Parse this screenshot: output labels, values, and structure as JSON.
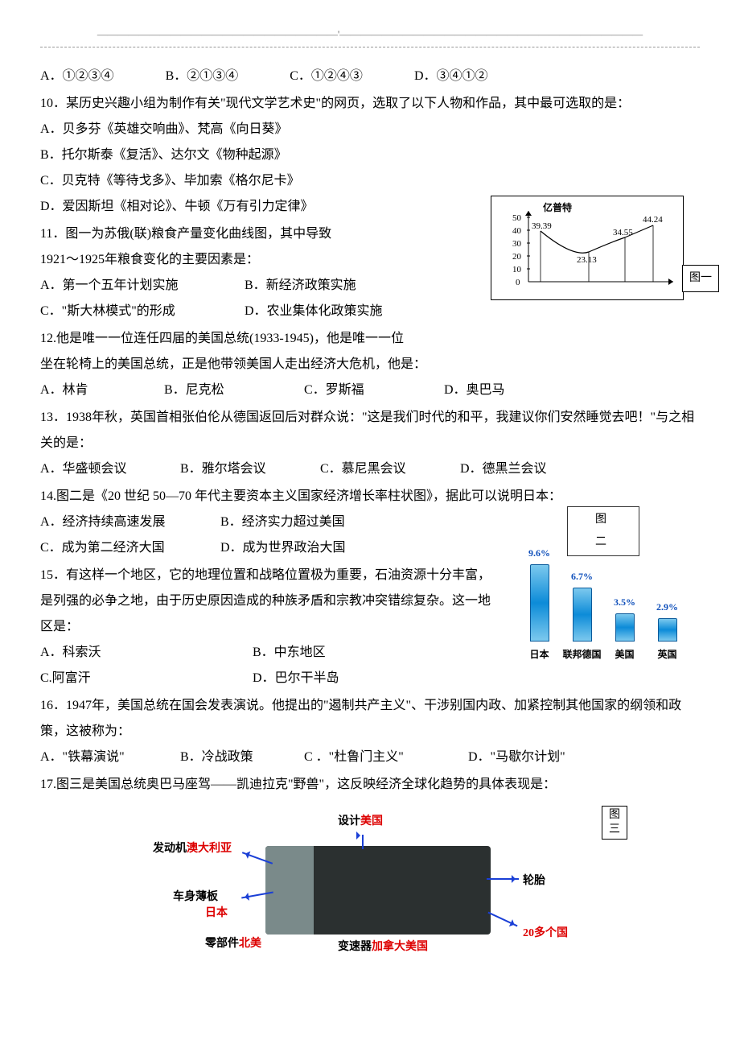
{
  "header": "———————————————————————'—————————————————————————————",
  "q9_options": [
    "A．①②③④",
    "B．②①③④",
    "C．①②④③",
    "D．③④①②"
  ],
  "q10": {
    "stem": "10．某历史兴趣小组为制作有关\"现代文学艺术史\"的网页，选取了以下人物和作品，其中最可选取的是：",
    "opts": [
      "A．贝多芬《英雄交响曲》、梵高《向日葵》",
      "B．托尔斯泰《复活》、达尔文《物种起源》",
      "C．贝克特《等待戈多》、毕加索《格尔尼卡》",
      "D．爱因斯坦《相对论》、牛顿《万有引力定律》"
    ]
  },
  "q11": {
    "stem1": "11．图一为苏俄(联)粮食产量变化曲线图，其中导致",
    "stem2": "1921～1925年粮食变化的主要因素是：",
    "opts": [
      "A．第一个五年计划实施",
      "B．新经济政策实施",
      "C．\"斯大林模式\"的形成",
      "D．农业集体化政策实施"
    ]
  },
  "chart1": {
    "ylabel": "亿普特",
    "yticks": [
      0,
      10,
      20,
      30,
      40,
      50
    ],
    "points": [
      {
        "val": 39.39
      },
      {
        "val": 23.13
      },
      {
        "val": 34.55
      },
      {
        "val": 44.24
      }
    ],
    "label": "图一",
    "bg_color": "#ffffff",
    "line_color": "#000000"
  },
  "q12": {
    "stem1": "12.他是唯一一位连任四届的美国总统(1933-1945)，他是唯一一位",
    "stem2": "坐在轮椅上的美国总统，正是他带领美国人走出经济大危机，他是：",
    "opts": [
      "A．林肯",
      "B．尼克松",
      "C．罗斯福",
      "D．奥巴马"
    ]
  },
  "q13": {
    "stem": "13．1938年秋，英国首相张伯伦从德国返回后对群众说：\"这是我们时代的和平，我建议你们安然睡觉去吧！\"与之相关的是：",
    "opts": [
      "A．华盛顿会议",
      "B．雅尔塔会议",
      "C．慕尼黑会议",
      "D．德黑兰会议"
    ]
  },
  "q14": {
    "stem": "14.图二是《20 世纪 50—70 年代主要资本主义国家经济增长率柱状图》，据此可以说明日本：",
    "opts": [
      "A．经济持续高速发展",
      "B．经济实力超过美国",
      "C．成为第二经济大国",
      "D．成为世界政治大国"
    ]
  },
  "chart2": {
    "title": "图 二",
    "bars": [
      {
        "label": "日本",
        "value": 9.6,
        "display": "9.6%",
        "color": "#3aa3e0"
      },
      {
        "label": "联邦德国",
        "value": 6.7,
        "display": "6.7%",
        "color": "#3aa3e0"
      },
      {
        "label": "美国",
        "value": 3.5,
        "display": "3.5%",
        "color": "#3aa3e0"
      },
      {
        "label": "英国",
        "value": 2.9,
        "display": "2.9%",
        "color": "#3aa3e0"
      }
    ],
    "max": 10,
    "value_color": "#1050bb"
  },
  "q15": {
    "stem": "15．有这样一个地区，它的地理位置和战略位置极为重要，石油资源十分丰富，是列强的必争之地，由于历史原因造成的种族矛盾和宗教冲突错综复杂。这一地区是：",
    "opts": [
      "A．科索沃",
      "B．中东地区",
      "C.阿富汗",
      "D．巴尔干半岛"
    ]
  },
  "q16": {
    "stem": "16．1947年，美国总统在国会发表演说。他提出的\"遏制共产主义\"、干涉别国内政、加紧控制其他国家的纲领和政策，这被称为：",
    "opts": [
      "A．\"铁幕演说\"",
      "B．冷战政策",
      "C ．\"杜鲁门主义\"",
      "D．\"马歇尔计划\""
    ]
  },
  "q17": {
    "stem": "17.图三是美国总统奥巴马座驾——凯迪拉克\"野兽\"，这反映经济全球化趋势的具体表现是："
  },
  "fig3": {
    "label": "图三",
    "annotations": [
      {
        "black": "设计",
        "red": "美国"
      },
      {
        "black": "发动机",
        "red": "澳大利亚"
      },
      {
        "black": "车身薄板",
        "red": "日本"
      },
      {
        "black": "零部件",
        "red": "北美"
      },
      {
        "black": "变速器",
        "red": "加拿大美国"
      },
      {
        "black": "轮胎",
        "red": ""
      },
      {
        "black": "",
        "red": "20多个国"
      }
    ]
  }
}
